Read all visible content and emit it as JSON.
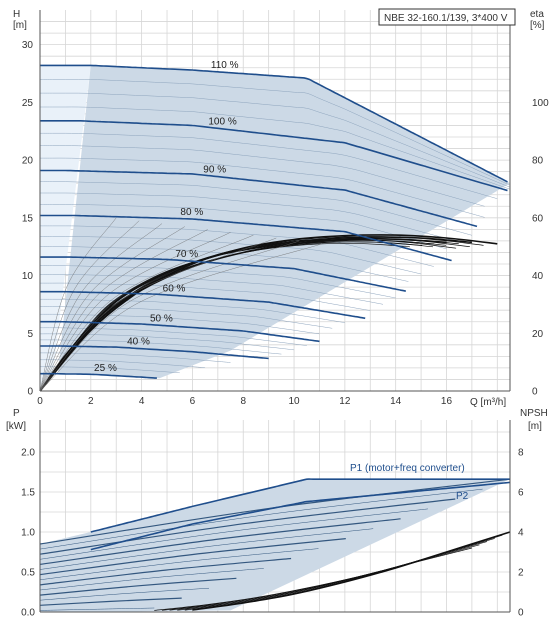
{
  "chart_data": [
    {
      "type": "line",
      "title": "NBE 32-160.1/139, 3*400 V",
      "xlabel": "Q [m³/h]",
      "ylabel_left": [
        "H",
        "[m]"
      ],
      "ylabel_right": [
        "eta",
        "[%]"
      ],
      "xlim": [
        0,
        18.5
      ],
      "ylim_left": [
        0,
        33
      ],
      "ylim_right": [
        0,
        132
      ],
      "x_ticks": [
        0,
        2,
        4,
        6,
        8,
        10,
        12,
        14,
        16
      ],
      "y_ticks_left": [
        0,
        5,
        10,
        15,
        20,
        25,
        30
      ],
      "y_ticks_right": [
        0,
        20,
        40,
        60,
        80,
        100
      ],
      "grid": true,
      "colors": {
        "curve": "#1f4e8c",
        "area": "#ccd9e6",
        "area_light": "#e9f1f9",
        "eta": "#111111",
        "grid": "#d6d6d6"
      },
      "series": [
        {
          "name": "110 %",
          "x": [
            0,
            2,
            6,
            10.5,
            18.5
          ],
          "y": [
            28.2,
            28.2,
            27.8,
            27.1,
            18
          ]
        },
        {
          "name": "100 %",
          "x": [
            0,
            1.6,
            6,
            12,
            18.5
          ],
          "y": [
            23.4,
            23.4,
            23.0,
            21.5,
            17.3
          ]
        },
        {
          "name": "90 %",
          "x": [
            0,
            1.0,
            6,
            12,
            17.3
          ],
          "y": [
            19.1,
            19.1,
            18.8,
            17.4,
            14.2
          ]
        },
        {
          "name": "80 %",
          "x": [
            0,
            1.4,
            6,
            12,
            16.2
          ],
          "y": [
            15.2,
            15.2,
            14.9,
            13.8,
            11.3
          ]
        },
        {
          "name": "70 %",
          "x": [
            0,
            1.2,
            5,
            10,
            14.5
          ],
          "y": [
            11.6,
            11.6,
            11.4,
            10.6,
            8.6
          ]
        },
        {
          "name": "60 %",
          "x": [
            0,
            1.0,
            4.5,
            9,
            12.8
          ],
          "y": [
            8.6,
            8.6,
            8.4,
            7.7,
            6.3
          ]
        },
        {
          "name": "50 %",
          "x": [
            0,
            0.9,
            4,
            8,
            11
          ],
          "y": [
            6.0,
            6.0,
            5.8,
            5.2,
            4.3
          ]
        },
        {
          "name": "40 %",
          "x": [
            0,
            0.7,
            3,
            6,
            9.1
          ],
          "y": [
            3.9,
            3.9,
            3.8,
            3.4,
            2.8
          ]
        },
        {
          "name": "25 %",
          "x": [
            0,
            0.5,
            2,
            4,
            4.7
          ],
          "y": [
            1.5,
            1.5,
            1.45,
            1.2,
            1.1
          ]
        }
      ],
      "eta": [
        {
          "x": [
            0,
            2,
            4,
            6,
            8,
            10,
            12,
            14,
            16,
            18
          ],
          "y": [
            0,
            21,
            35,
            44,
            49.5,
            52.5,
            53.8,
            54,
            53,
            51
          ]
        },
        {
          "x": [
            0,
            1.5,
            3,
            5,
            7,
            9,
            11,
            13,
            15,
            17
          ],
          "y": [
            0,
            17,
            31,
            41,
            47,
            50.5,
            52.5,
            53.3,
            53,
            51.5
          ]
        },
        {
          "x": [
            0,
            1,
            2.5,
            4,
            6,
            8,
            10,
            12,
            14,
            16
          ],
          "y": [
            0,
            12,
            26,
            35,
            43,
            48,
            51,
            52.5,
            52.6,
            51.5
          ]
        }
      ]
    },
    {
      "type": "line",
      "xlabel": "",
      "ylabel_left": [
        "P",
        "[kW]"
      ],
      "ylabel_right": [
        "NPSH",
        "[m]"
      ],
      "xlim": [
        0,
        18.5
      ],
      "ylim_left": [
        0,
        2.4
      ],
      "ylim_right": [
        0,
        9.6
      ],
      "y_ticks_left": [
        0.0,
        0.5,
        1.0,
        1.5,
        2.0
      ],
      "y_ticks_left_labels": [
        "0.0",
        "0.5",
        "1.0",
        "1.5",
        "2.0"
      ],
      "y_ticks_right": [
        0,
        2,
        4,
        6,
        8
      ],
      "grid": true,
      "labels": {
        "p1": "P1 (motor+freq converter)",
        "p2": "P2"
      },
      "series": [
        {
          "name": "P1 (motor+freq converter)",
          "x": [
            2,
            6,
            10.5,
            18.5
          ],
          "y": [
            1.0,
            1.32,
            1.66,
            1.66
          ]
        },
        {
          "name": "P2",
          "x": [
            2,
            6,
            10.5,
            18.5
          ],
          "y": [
            0.78,
            1.1,
            1.38,
            1.62
          ]
        }
      ],
      "npsh": {
        "x": [
          6,
          8,
          10,
          12,
          14,
          16,
          18.5
        ],
        "y": [
          0.1,
          0.45,
          0.9,
          1.5,
          2.2,
          3.0,
          4.0
        ]
      }
    }
  ]
}
